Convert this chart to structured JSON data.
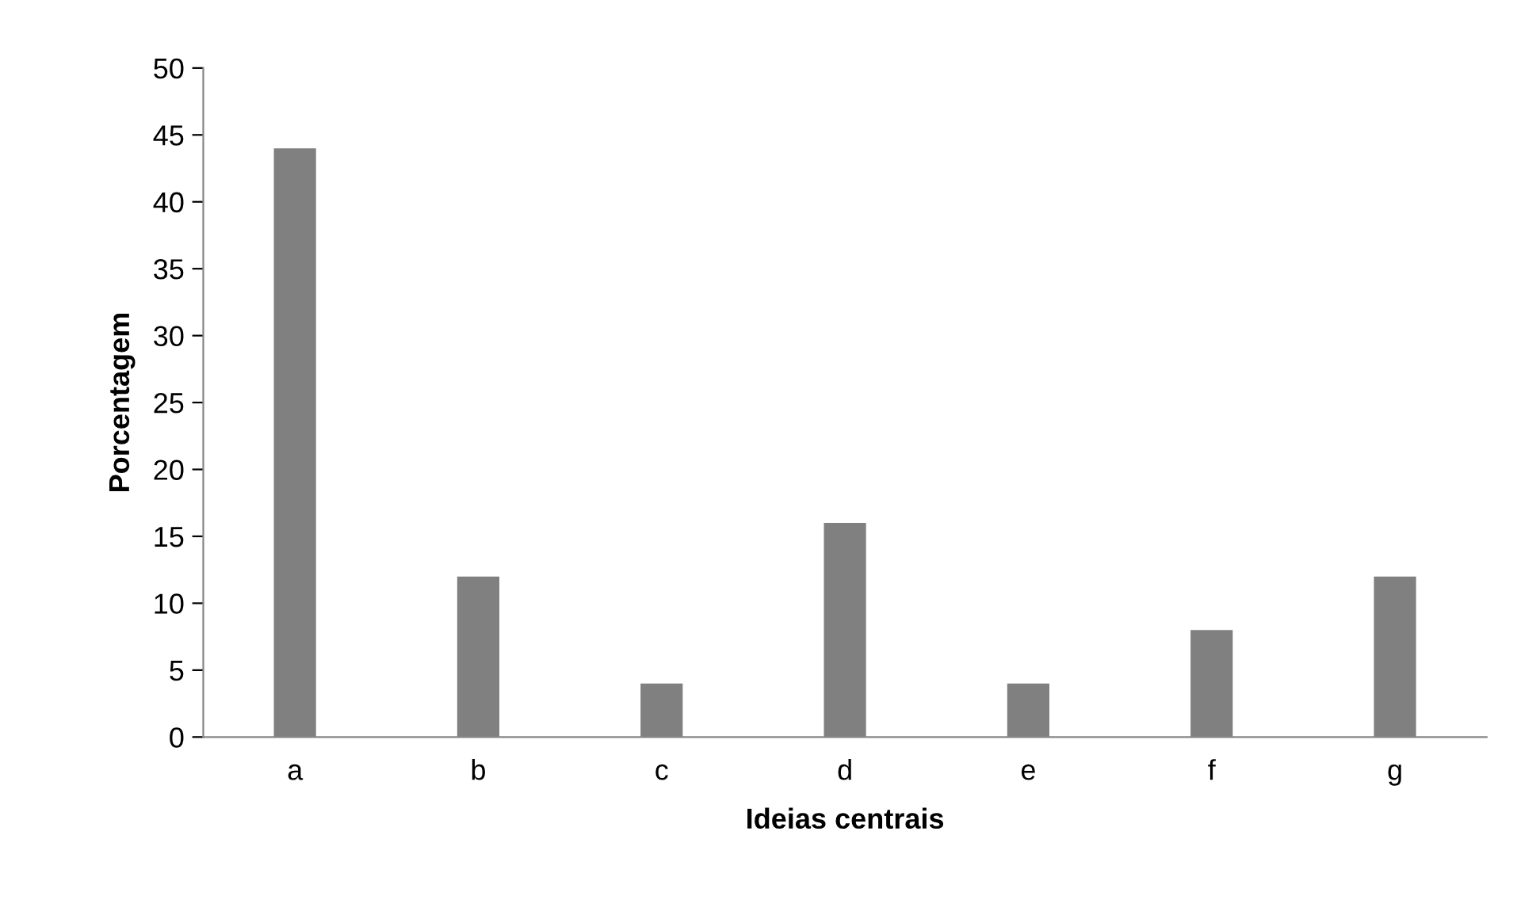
{
  "chart_data": {
    "type": "bar",
    "xlabel": "Ideias centrais",
    "ylabel": "Porcentagem",
    "categories": [
      "a",
      "b",
      "c",
      "d",
      "e",
      "f",
      "g"
    ],
    "values": [
      44,
      12,
      4,
      16,
      4,
      8,
      12
    ],
    "color": "#808080",
    "ylim": [
      0,
      50
    ],
    "yticks": [
      0,
      5,
      10,
      15,
      20,
      25,
      30,
      35,
      40,
      45,
      50
    ],
    "grid": false
  }
}
